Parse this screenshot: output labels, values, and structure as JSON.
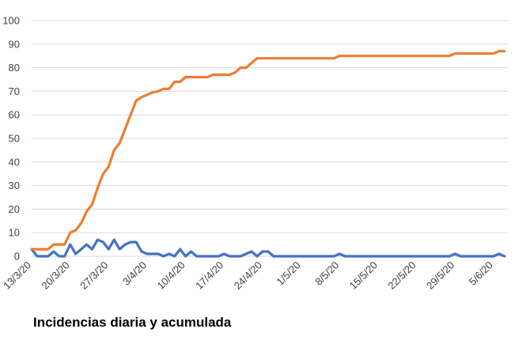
{
  "caption": "Incidencias diaria y acumulada",
  "chart_data": {
    "type": "line",
    "title": "",
    "xlabel": "",
    "ylabel": "",
    "ylim": [
      0,
      100
    ],
    "y_ticks": [
      0,
      10,
      20,
      30,
      40,
      50,
      60,
      70,
      80,
      90,
      100
    ],
    "x_tick_labels": [
      "13/3/20",
      "20/3/20",
      "27/3/20",
      "3/4/20",
      "10/4/20",
      "17/4/20",
      "24/4/20",
      "1/5/20",
      "8/5/20",
      "15/5/20",
      "22/5/20",
      "29/5/20",
      "5/6/20"
    ],
    "x_tick_day_offsets": [
      0,
      7,
      14,
      21,
      28,
      35,
      42,
      49,
      56,
      63,
      70,
      77,
      84
    ],
    "grid": true,
    "legend": "none",
    "series": [
      {
        "color": "#4472C4",
        "x": [
          0,
          1,
          2,
          3,
          4,
          5,
          6,
          7,
          8,
          9,
          10,
          11,
          12,
          13,
          14,
          15,
          16,
          17,
          18,
          19,
          20,
          21,
          22,
          23,
          24,
          25,
          26,
          27,
          28,
          29,
          30,
          31,
          32,
          33,
          34,
          35,
          36,
          37,
          38,
          39,
          40,
          41,
          42,
          43,
          44,
          45,
          46,
          47,
          48,
          49,
          50,
          51,
          52,
          53,
          54,
          55,
          56,
          57,
          58,
          59,
          60,
          61,
          62,
          63,
          64,
          65,
          66,
          67,
          68,
          69,
          70,
          71,
          72,
          73,
          74,
          75,
          76,
          77,
          78,
          79,
          80,
          81,
          82,
          83,
          84,
          85,
          86
        ],
        "values": [
          3,
          0,
          0,
          0,
          2,
          0,
          0,
          5,
          1,
          3,
          5,
          3,
          7,
          6,
          3,
          7,
          3,
          5,
          6,
          6,
          2,
          1,
          1,
          1,
          0,
          1,
          0,
          3,
          0,
          2,
          0,
          0,
          0,
          0,
          0,
          1,
          0,
          0,
          0,
          1,
          2,
          0,
          2,
          2,
          0,
          0,
          0,
          0,
          0,
          0,
          0,
          0,
          0,
          0,
          0,
          0,
          1,
          0,
          0,
          0,
          0,
          0,
          0,
          0,
          0,
          0,
          0,
          0,
          0,
          0,
          0,
          0,
          0,
          0,
          0,
          0,
          0,
          1,
          0,
          0,
          0,
          0,
          0,
          0,
          0,
          1,
          0
        ]
      },
      {
        "color": "#ED7D31",
        "x": [
          0,
          1,
          2,
          3,
          4,
          5,
          6,
          7,
          8,
          9,
          10,
          11,
          12,
          13,
          14,
          15,
          16,
          17,
          18,
          19,
          20,
          21,
          22,
          23,
          24,
          25,
          26,
          27,
          28,
          29,
          30,
          31,
          32,
          33,
          34,
          35,
          36,
          37,
          38,
          39,
          40,
          41,
          42,
          43,
          44,
          45,
          46,
          47,
          48,
          49,
          50,
          51,
          52,
          53,
          54,
          55,
          56,
          57,
          58,
          59,
          60,
          61,
          62,
          63,
          64,
          65,
          66,
          67,
          68,
          69,
          70,
          71,
          72,
          73,
          74,
          75,
          76,
          77,
          78,
          79,
          80,
          81,
          82,
          83,
          84,
          85,
          86
        ],
        "values": [
          3,
          3,
          3,
          3,
          5,
          5,
          5,
          10,
          11,
          14,
          19,
          22,
          29,
          35,
          38,
          45,
          48,
          54,
          60,
          66,
          67.5,
          68.5,
          69.5,
          70,
          71,
          71,
          74,
          74,
          76,
          76,
          76,
          76,
          76,
          77,
          77,
          77,
          77,
          78,
          80,
          80,
          82,
          84,
          84,
          84,
          84,
          84,
          84,
          84,
          84,
          84,
          84,
          84,
          84,
          84,
          84,
          84,
          85,
          85,
          85,
          85,
          85,
          85,
          85,
          85,
          85,
          85,
          85,
          85,
          85,
          85,
          85,
          85,
          85,
          85,
          85,
          85,
          85,
          86,
          86,
          86,
          86,
          86,
          86,
          86,
          86,
          87,
          87
        ]
      }
    ]
  }
}
